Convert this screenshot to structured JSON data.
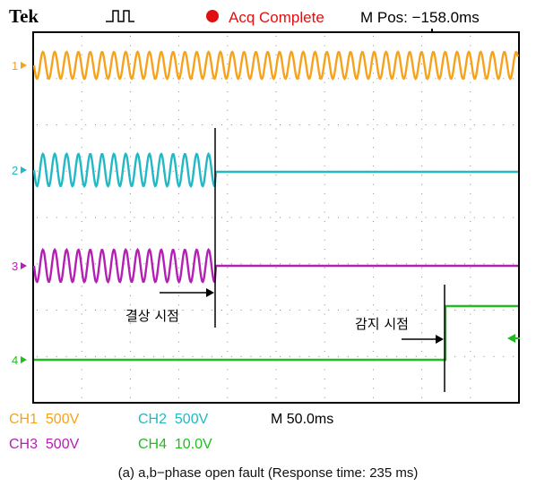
{
  "header": {
    "brand": "Tek",
    "status": "Acq Complete",
    "mpos": "M Pos: −158.0ms",
    "trigger_icon": "pulse-icon",
    "status_icon": "record-dot-icon"
  },
  "channels": [
    {
      "id": "ch1",
      "marker": "1",
      "setting": "CH1  500V",
      "color": "#f7a21b"
    },
    {
      "id": "ch2",
      "marker": "2",
      "setting": "CH2  500V",
      "color": "#22b8c4"
    },
    {
      "id": "ch3",
      "marker": "3",
      "setting": "CH3  500V",
      "color": "#b41fb4"
    },
    {
      "id": "ch4",
      "marker": "4",
      "setting": "CH4  10.0V",
      "color": "#22bb22"
    }
  ],
  "timebase": "M 50.0ms",
  "annotations": {
    "fault_point": "결상 시점",
    "detect_point": "감지 시점"
  },
  "caption": "(a) a,b−phase open fault (Response time: 235 ms)"
}
